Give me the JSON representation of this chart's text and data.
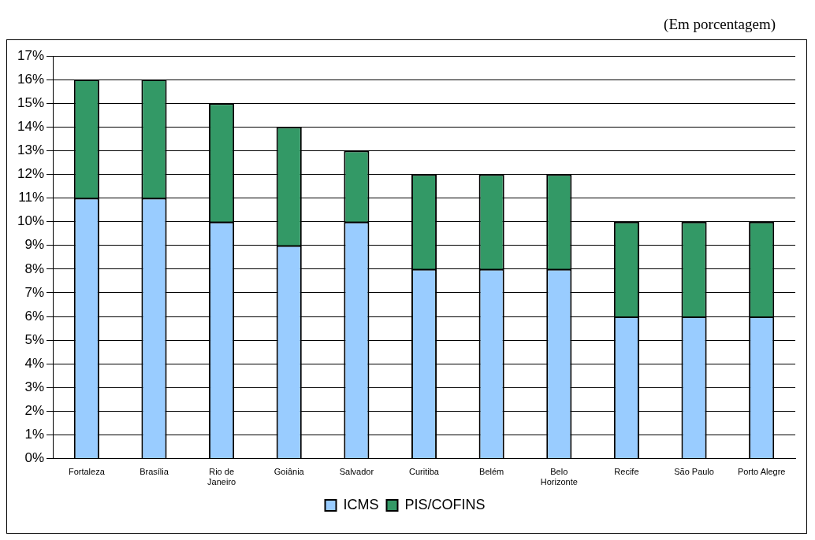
{
  "chart_data": {
    "type": "bar",
    "stacked": true,
    "annotations": [
      "(Em porcentagem)"
    ],
    "categories": [
      "Fortaleza",
      "Brasília",
      "Rio de Janeiro",
      "Goiânia",
      "Salvador",
      "Curitiba",
      "Belém",
      "Belo Horizonte",
      "Recife",
      "São Paulo",
      "Porto Alegre"
    ],
    "series": [
      {
        "name": "ICMS",
        "color": "#99ccff",
        "values": [
          11,
          11,
          10,
          9,
          10,
          8,
          8,
          8,
          6,
          6,
          6
        ]
      },
      {
        "name": "PIS/COFINS",
        "color": "#339966",
        "values": [
          5,
          5,
          5,
          5,
          3,
          4,
          4,
          4,
          4,
          4,
          4
        ]
      }
    ],
    "ylim": [
      0,
      17
    ],
    "yticks": [
      {
        "value": 0,
        "label": "0%"
      },
      {
        "value": 1,
        "label": "1%"
      },
      {
        "value": 2,
        "label": "2%"
      },
      {
        "value": 3,
        "label": "3%"
      },
      {
        "value": 4,
        "label": "4%"
      },
      {
        "value": 5,
        "label": "5%"
      },
      {
        "value": 6,
        "label": "6%"
      },
      {
        "value": 7,
        "label": "7%"
      },
      {
        "value": 8,
        "label": "8%"
      },
      {
        "value": 9,
        "label": "9%"
      },
      {
        "value": 10,
        "label": "10%"
      },
      {
        "value": 11,
        "label": "11%"
      },
      {
        "value": 12,
        "label": "12%"
      },
      {
        "value": 13,
        "label": "13%"
      },
      {
        "value": 14,
        "label": "14%"
      },
      {
        "value": 15,
        "label": "15%"
      },
      {
        "value": 16,
        "label": "16%"
      },
      {
        "value": 17,
        "label": "17%"
      }
    ],
    "grid": "y",
    "legend": "bottom"
  }
}
